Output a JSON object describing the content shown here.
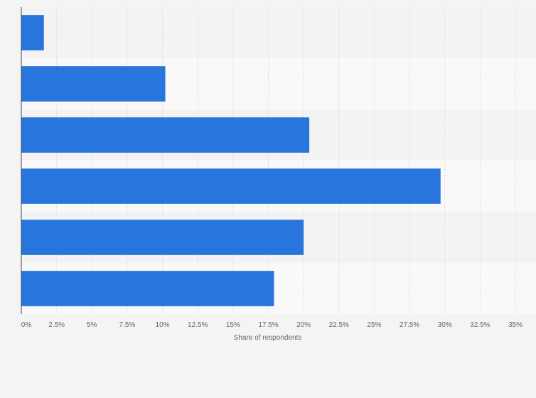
{
  "chart_data": {
    "type": "bar",
    "orientation": "horizontal",
    "categories": [
      "",
      "",
      "",
      "",
      "",
      ""
    ],
    "values": [
      1.6,
      10.2,
      20.4,
      29.7,
      20.0,
      17.9
    ],
    "xlabel": "Share of respondents",
    "ylabel": "",
    "xlim": [
      0,
      35
    ],
    "x_ticks": [
      "0%",
      "2.5%",
      "5%",
      "7.5%",
      "10%",
      "12.5%",
      "15%",
      "17.5%",
      "20%",
      "22.5%",
      "25%",
      "27.5%",
      "30%",
      "32.5%",
      "35%"
    ],
    "grid": true,
    "bar_color": "#2876dd",
    "band_colors": [
      "#f3f3f3",
      "#f9f9f9"
    ],
    "background_color": "#f4f4f4"
  }
}
